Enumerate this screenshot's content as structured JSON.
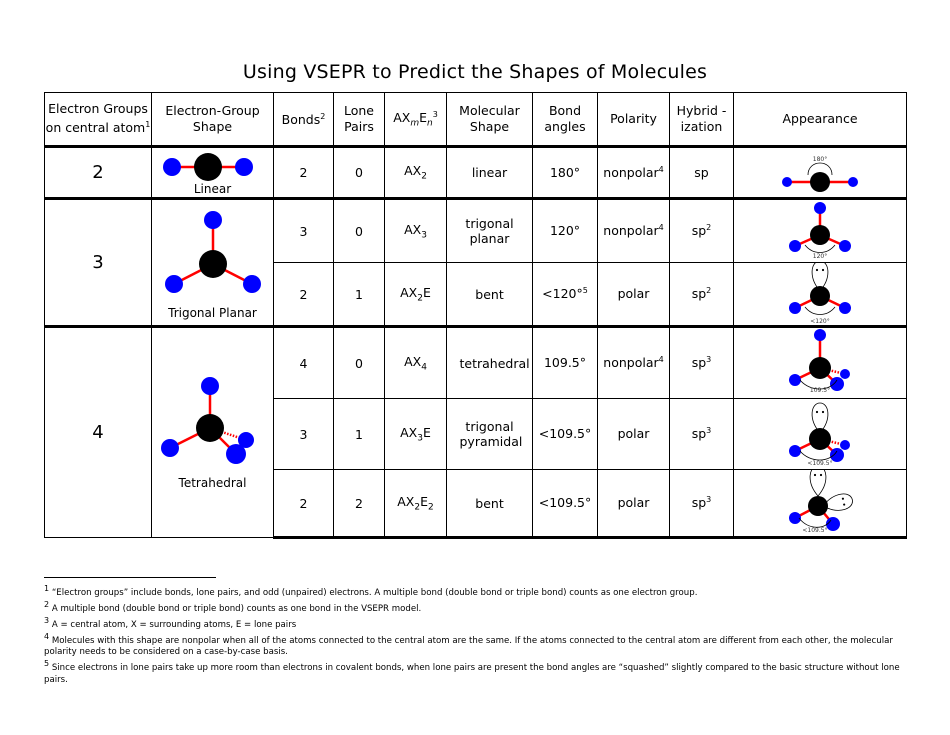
{
  "title": "Using VSEPR to Predict the Shapes of Molecules",
  "headers": {
    "groups": "Electron Groups on central atom",
    "groups_sup": "1",
    "egshape": "Electron-Group Shape",
    "bonds": "Bonds",
    "bonds_sup": "2",
    "lone": "Lone Pairs",
    "ax_a": "AX",
    "ax_m": "m",
    "ax_e": "E",
    "ax_n": "n",
    "ax_sup": "3",
    "molshape": "Molecular Shape",
    "angles": "Bond angles",
    "polarity": "Polarity",
    "hybrid": "Hybrid -ization",
    "appearance": "Appearance"
  },
  "groups": [
    {
      "n": "2",
      "shape": "Linear"
    },
    {
      "n": "3",
      "shape": "Trigonal Planar"
    },
    {
      "n": "4",
      "shape": "Tetrahedral"
    }
  ],
  "rows": [
    {
      "bonds": "2",
      "lone": "0",
      "ax": "AX",
      "ax_sub": "2",
      "ax_e": "",
      "ax_e_sub": "",
      "shape": "linear",
      "angle": "180°",
      "angle_sup": "",
      "polarity": "nonpolar",
      "pol_sup": "4",
      "hyb": "sp",
      "hyb_sup": "",
      "app_label": "180°"
    },
    {
      "bonds": "3",
      "lone": "0",
      "ax": "AX",
      "ax_sub": "3",
      "ax_e": "",
      "ax_e_sub": "",
      "shape": "trigonal planar",
      "angle": "120°",
      "angle_sup": "",
      "polarity": "nonpolar",
      "pol_sup": "4",
      "hyb": "sp",
      "hyb_sup": "2",
      "app_label": "120°"
    },
    {
      "bonds": "2",
      "lone": "1",
      "ax": "AX",
      "ax_sub": "2",
      "ax_e": "E",
      "ax_e_sub": "",
      "shape": "bent",
      "angle": "<120°",
      "angle_sup": "5",
      "polarity": "polar",
      "pol_sup": "",
      "hyb": "sp",
      "hyb_sup": "2",
      "app_label": "<120°"
    },
    {
      "bonds": "4",
      "lone": "0",
      "ax": "AX",
      "ax_sub": "4",
      "ax_e": "",
      "ax_e_sub": "",
      "shape": "tetrahedral",
      "angle": "109.5°",
      "angle_sup": "",
      "polarity": "nonpolar",
      "pol_sup": "4",
      "hyb": "sp",
      "hyb_sup": "3",
      "app_label": "109.5°"
    },
    {
      "bonds": "3",
      "lone": "1",
      "ax": "AX",
      "ax_sub": "3",
      "ax_e": "E",
      "ax_e_sub": "",
      "shape": "trigonal pyramidal",
      "angle": "<109.5°",
      "angle_sup": "",
      "polarity": "polar",
      "pol_sup": "",
      "hyb": "sp",
      "hyb_sup": "3",
      "app_label": "<109.5°"
    },
    {
      "bonds": "2",
      "lone": "2",
      "ax": "AX",
      "ax_sub": "2",
      "ax_e": "E",
      "ax_e_sub": "2",
      "shape": "bent",
      "angle": "<109.5°",
      "angle_sup": "",
      "polarity": "polar",
      "pol_sup": "",
      "hyb": "sp",
      "hyb_sup": "3",
      "app_label": "<109.5°"
    }
  ],
  "footnotes": [
    {
      "n": "1",
      "text": "“Electron groups” include bonds, lone pairs, and odd (unpaired) electrons.  A multiple bond (double bond or triple bond) counts as one electron group."
    },
    {
      "n": "2",
      "text": "A multiple bond (double bond or triple bond) counts as one bond in the VSEPR model."
    },
    {
      "n": "3",
      "text": "A = central atom, X = surrounding atoms, E = lone pairs"
    },
    {
      "n": "4",
      "text": "Molecules with this shape are nonpolar when all of the atoms connected to the central atom are the same.  If the atoms connected to the central atom are different from each other, the molecular polarity needs to be considered on a case-by-case basis."
    },
    {
      "n": "5",
      "text": "Since electrons in lone pairs take up more room than electrons in covalent bonds, when lone pairs are present the bond angles are “squashed” slightly compared to the basic structure without lone pairs."
    }
  ],
  "colors": {
    "central_atom": "#000000",
    "surrounding_atom": "#0000ff",
    "bond": "#ff0000"
  }
}
